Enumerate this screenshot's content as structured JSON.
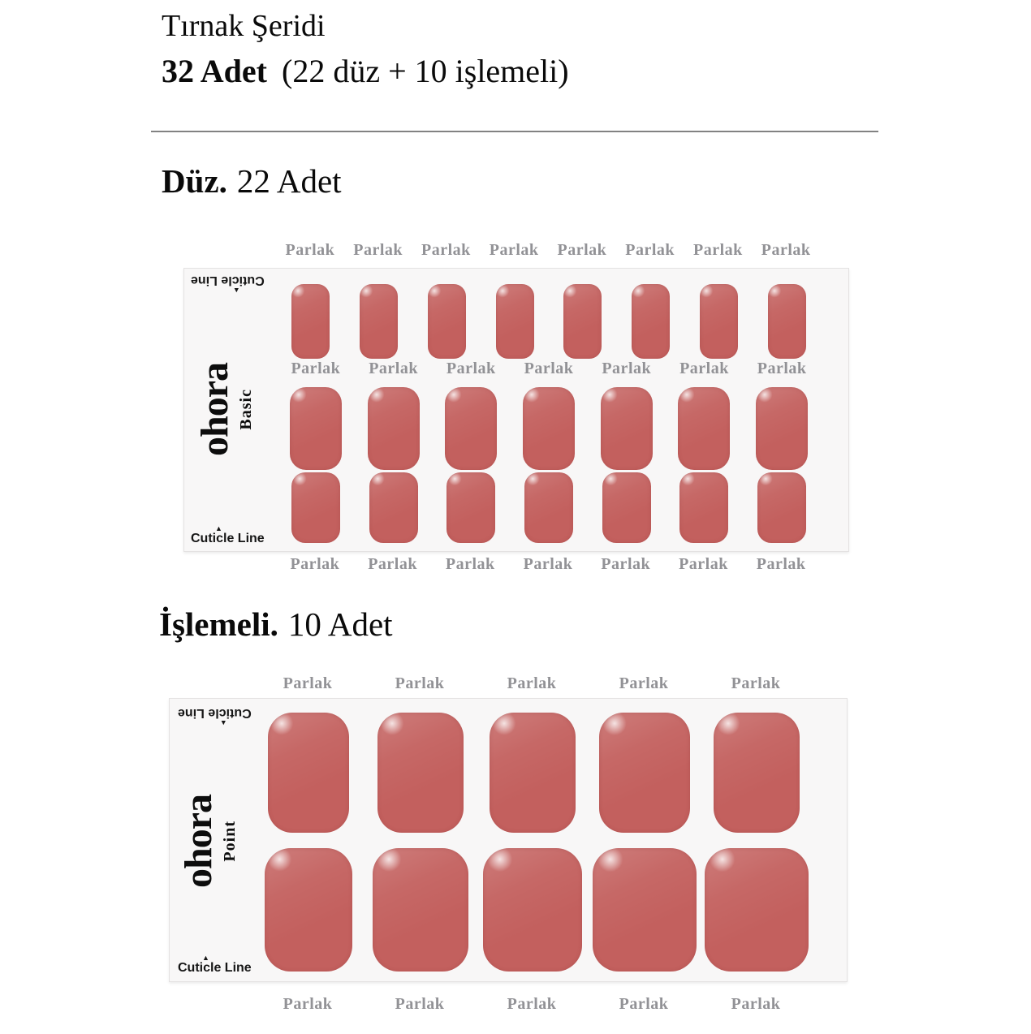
{
  "header": {
    "title": "Tırnak Şeridi",
    "total": "32 Adet",
    "breakdown": "(22 düz + 10 işlemeli)"
  },
  "basic": {
    "heading_bold": "Düz.",
    "heading_rest": "22 Adet",
    "brand": "ohora",
    "line": "Basic",
    "cuticle_line": "Cuticle Line",
    "cuticle_arrow": "▲",
    "labels_top": [
      "Parlak",
      "Parlak",
      "Parlak",
      "Parlak",
      "Parlak",
      "Parlak",
      "Parlak",
      "Parlak"
    ],
    "labels_mid": [
      "Parlak",
      "Parlak",
      "Parlak",
      "Parlak",
      "Parlak",
      "Parlak",
      "Parlak"
    ],
    "labels_bottom": [
      "Parlak",
      "Parlak",
      "Parlak",
      "Parlak",
      "Parlak",
      "Parlak",
      "Parlak"
    ],
    "nail_count": 22
  },
  "point": {
    "heading_bold": "İşlemeli.",
    "heading_rest": "10 Adet",
    "brand": "ohora",
    "line": "Point",
    "cuticle_line": "Cuticle Line",
    "cuticle_arrow": "▲",
    "labels_top": [
      "Parlak",
      "Parlak",
      "Parlak",
      "Parlak",
      "Parlak"
    ],
    "labels_bottom": [
      "Parlak",
      "Parlak",
      "Parlak",
      "Parlak",
      "Parlak"
    ],
    "nail_count": 10
  },
  "colors": {
    "nail": "#c3605e",
    "finish_label": "#929296",
    "sheet_background": "#f8f7f7"
  }
}
